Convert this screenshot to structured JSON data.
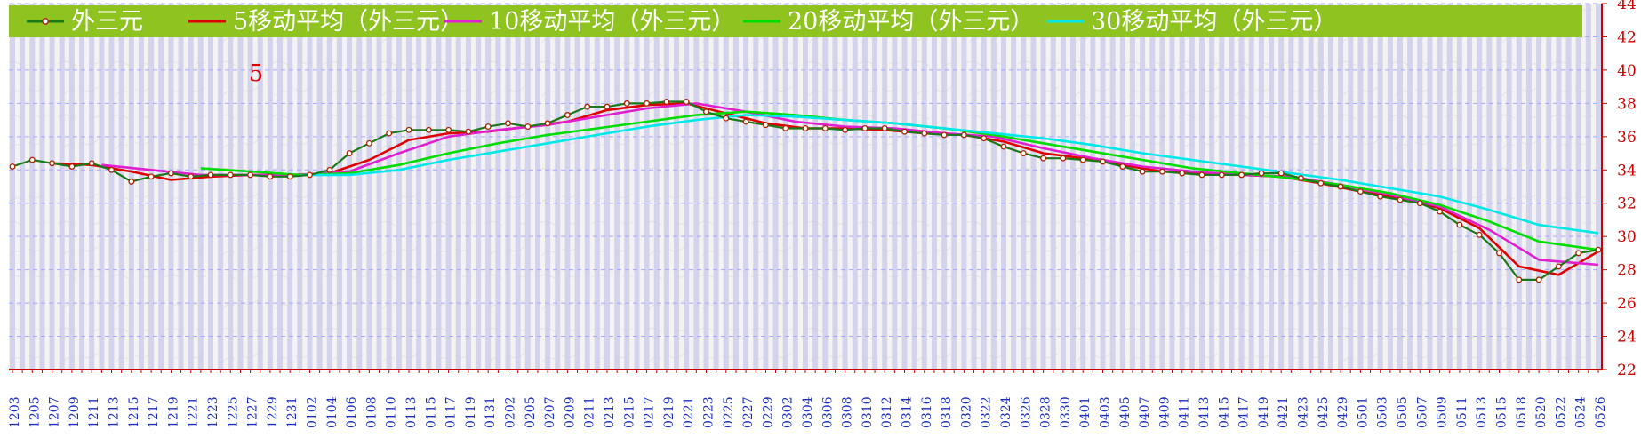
{
  "chart_data": {
    "type": "line",
    "title": "",
    "xlabel": "",
    "ylabel": "",
    "annotation": "5",
    "ylim": [
      22,
      44
    ],
    "y_ticks": [
      22,
      24,
      26,
      28,
      30,
      32,
      34,
      36,
      38,
      40,
      42,
      44
    ],
    "grid": true,
    "legend_position": "top",
    "x_tick_labels": [
      "1203",
      "1205",
      "1207",
      "1209",
      "1211",
      "1213",
      "1215",
      "1217",
      "1219",
      "1221",
      "1223",
      "1225",
      "1227",
      "1229",
      "1231",
      "0102",
      "0104",
      "0106",
      "0108",
      "0110",
      "0113",
      "0115",
      "0117",
      "0119",
      "0131",
      "0202",
      "0205",
      "0207",
      "0209",
      "0211",
      "0213",
      "0215",
      "0217",
      "0219",
      "0221",
      "0223",
      "0225",
      "0227",
      "0229",
      "0302",
      "0304",
      "0306",
      "0308",
      "0310",
      "0312",
      "0314",
      "0316",
      "0318",
      "0320",
      "0322",
      "0324",
      "0326",
      "0328",
      "0330",
      "0401",
      "0403",
      "0405",
      "0407",
      "0409",
      "0411",
      "0413",
      "0415",
      "0417",
      "0419",
      "0421",
      "0423",
      "0425",
      "0429",
      "0501",
      "0503",
      "0505",
      "0507",
      "0509",
      "0511",
      "0513",
      "0515",
      "0518",
      "0520",
      "0522",
      "0524",
      "0526"
    ],
    "series": [
      {
        "name": "外三元",
        "color": "#1a7a1a",
        "marker": "circle",
        "x": [
          0,
          2,
          4,
          6,
          8,
          10,
          12,
          14,
          16,
          18,
          20,
          22,
          24,
          26,
          28,
          30,
          32,
          34,
          36,
          38,
          40,
          42,
          44,
          46,
          48,
          50,
          52,
          54,
          56,
          58,
          60,
          62,
          64,
          66,
          68,
          70,
          72,
          74,
          76,
          78,
          80,
          82,
          84,
          86,
          88,
          90,
          92,
          94,
          96,
          98,
          100,
          102,
          104,
          106,
          108,
          110,
          112,
          114,
          116,
          118,
          120,
          122,
          124,
          126,
          128,
          130,
          132,
          134,
          136,
          138,
          140,
          142,
          144,
          146,
          148,
          150,
          152,
          154,
          156,
          158,
          160
        ],
        "values": [
          34.2,
          34.6,
          34.4,
          34.2,
          34.4,
          34.0,
          33.3,
          33.6,
          33.8,
          33.6,
          33.7,
          33.7,
          33.7,
          33.6,
          33.6,
          33.7,
          34.0,
          35.0,
          35.6,
          36.2,
          36.4,
          36.4,
          36.4,
          36.3,
          36.6,
          36.8,
          36.6,
          36.8,
          37.3,
          37.8,
          37.8,
          38.0,
          38.0,
          38.1,
          38.1,
          37.5,
          37.1,
          36.9,
          36.7,
          36.5,
          36.5,
          36.5,
          36.4,
          36.5,
          36.5,
          36.3,
          36.2,
          36.1,
          36.1,
          35.9,
          35.4,
          35.0,
          34.7,
          34.7,
          34.6,
          34.5,
          34.2,
          33.9,
          33.9,
          33.8,
          33.7,
          33.7,
          33.7,
          33.8,
          33.8,
          33.5,
          33.2,
          33.0,
          32.7,
          32.4,
          32.2,
          32.0,
          31.5,
          30.7,
          30.1,
          29.0,
          27.4,
          27.4,
          28.2,
          29.0,
          29.2
        ]
      },
      {
        "name": "5移动平均（外三元）",
        "color": "#e00000",
        "x": [
          4,
          8,
          12,
          16,
          20,
          24,
          28,
          32,
          36,
          40,
          44,
          48,
          52,
          56,
          60,
          64,
          68,
          72,
          76,
          80,
          84,
          88,
          92,
          96,
          100,
          104,
          108,
          112,
          116,
          120,
          124,
          128,
          132,
          136,
          140,
          144,
          148,
          152,
          156,
          160
        ],
        "values": [
          34.4,
          34.3,
          33.9,
          33.4,
          33.6,
          33.7,
          33.7,
          33.8,
          34.6,
          35.8,
          36.2,
          36.3,
          36.6,
          36.9,
          37.6,
          37.9,
          38.0,
          37.4,
          36.8,
          36.5,
          36.5,
          36.4,
          36.2,
          36.1,
          35.7,
          35.0,
          34.7,
          34.3,
          33.9,
          33.8,
          33.7,
          33.6,
          33.2,
          32.7,
          32.3,
          31.7,
          30.5,
          28.2,
          27.7,
          29.1
        ]
      },
      {
        "name": "10移动平均（外三元）",
        "color": "#e020d0",
        "x": [
          9,
          14,
          19,
          24,
          29,
          34,
          39,
          44,
          49,
          54,
          59,
          64,
          69,
          74,
          79,
          84,
          89,
          94,
          99,
          104,
          109,
          114,
          119,
          124,
          129,
          134,
          139,
          144,
          149,
          154,
          160
        ],
        "values": [
          34.3,
          34.0,
          33.7,
          33.7,
          33.7,
          33.9,
          35.0,
          36.0,
          36.4,
          36.7,
          37.2,
          37.7,
          38.0,
          37.5,
          36.9,
          36.6,
          36.5,
          36.2,
          36.0,
          35.3,
          34.7,
          34.2,
          33.9,
          33.7,
          33.6,
          33.1,
          32.5,
          31.8,
          30.4,
          28.6,
          28.3
        ]
      },
      {
        "name": "20移动平均（外三元）",
        "color": "#00dd00",
        "x": [
          19,
          24,
          29,
          34,
          39,
          44,
          49,
          54,
          59,
          64,
          69,
          74,
          79,
          84,
          89,
          94,
          99,
          104,
          109,
          114,
          119,
          124,
          129,
          134,
          139,
          144,
          149,
          154,
          160
        ],
        "values": [
          34.1,
          33.9,
          33.7,
          33.8,
          34.3,
          35.0,
          35.6,
          36.1,
          36.5,
          36.9,
          37.3,
          37.5,
          37.3,
          37.0,
          36.8,
          36.5,
          36.1,
          35.6,
          35.1,
          34.6,
          34.1,
          33.8,
          33.5,
          33.1,
          32.6,
          31.9,
          30.9,
          29.7,
          29.2
        ]
      },
      {
        "name": "30移动平均（外三元）",
        "color": "#00e8e8",
        "x": [
          29,
          34,
          39,
          44,
          49,
          54,
          59,
          64,
          69,
          74,
          79,
          84,
          89,
          94,
          99,
          104,
          109,
          114,
          119,
          124,
          129,
          134,
          139,
          144,
          149,
          154,
          160
        ],
        "values": [
          33.7,
          33.7,
          34.0,
          34.6,
          35.1,
          35.6,
          36.1,
          36.6,
          37.0,
          37.3,
          37.2,
          37.0,
          36.8,
          36.5,
          36.2,
          35.9,
          35.5,
          35.0,
          34.6,
          34.2,
          33.8,
          33.4,
          32.9,
          32.4,
          31.6,
          30.7,
          30.2
        ]
      }
    ]
  }
}
